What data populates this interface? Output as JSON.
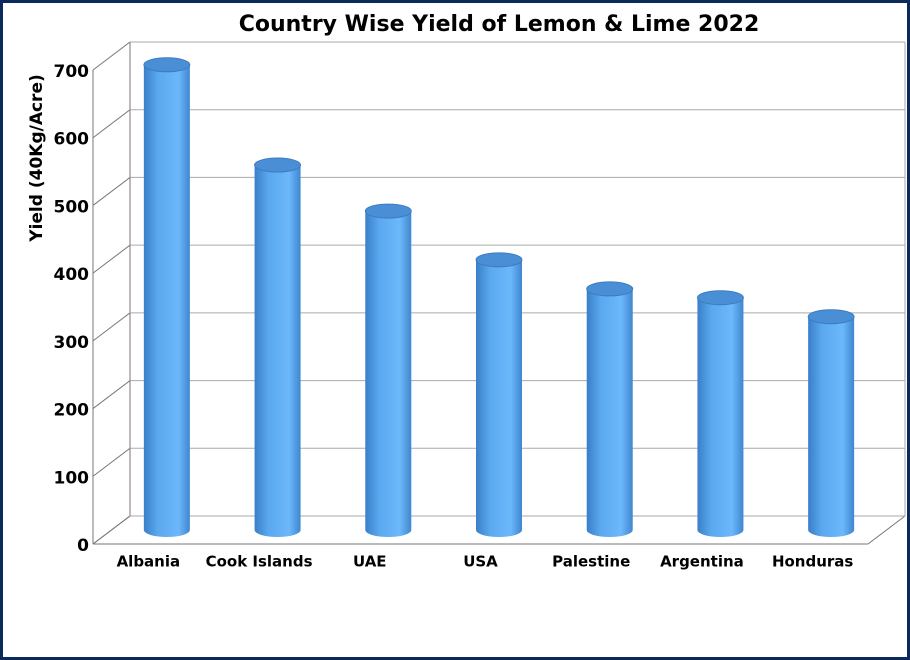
{
  "chart_data": {
    "type": "bar",
    "title": "Country Wise Yield of Lemon & Lime 2022",
    "y_label": "Yield (40Kg/Acre)",
    "categories": [
      "Albania",
      "Cook Islands",
      "UAE",
      "USA",
      "Palestine",
      "Argentina",
      "Honduras"
    ],
    "values": [
      687,
      539,
      471,
      399,
      356,
      343,
      315
    ],
    "color": "#5aaaf0",
    "ylim": [
      0,
      700
    ],
    "yticks": [
      0,
      100,
      200,
      300,
      400,
      500,
      600,
      700
    ],
    "grid": true
  }
}
